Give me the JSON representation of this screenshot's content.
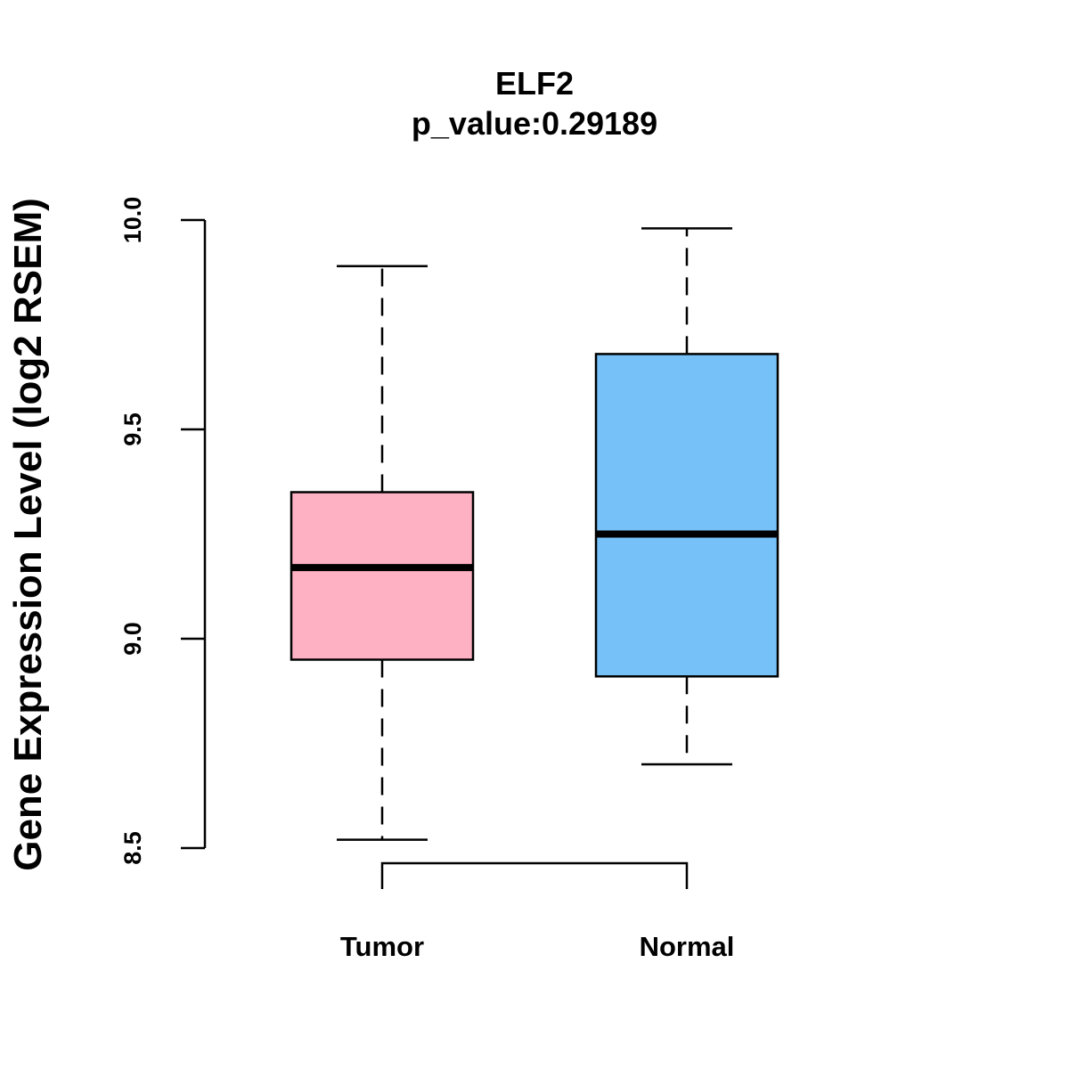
{
  "chart_data": {
    "type": "boxplot",
    "title": "ELF2",
    "subtitle": "p_value:0.29189",
    "xlabel": "",
    "ylabel": "Gene Expression Level (log2 RSEM)",
    "ylim": [
      8.5,
      10.0
    ],
    "yticks": [
      "8.5",
      "9.0",
      "9.5",
      "10.0"
    ],
    "categories": [
      "Tumor",
      "Normal"
    ],
    "boxes": [
      {
        "category": "Tumor",
        "whisker_low": 8.52,
        "q1": 8.95,
        "median": 9.17,
        "q3": 9.35,
        "whisker_high": 9.89,
        "color": "#FFB1C4"
      },
      {
        "category": "Normal",
        "whisker_low": 8.7,
        "q1": 8.91,
        "median": 9.25,
        "q3": 9.68,
        "whisker_high": 9.98,
        "color": "#76C1F7"
      }
    ],
    "comparison_bracket": true,
    "grid": false,
    "legend": "none"
  }
}
